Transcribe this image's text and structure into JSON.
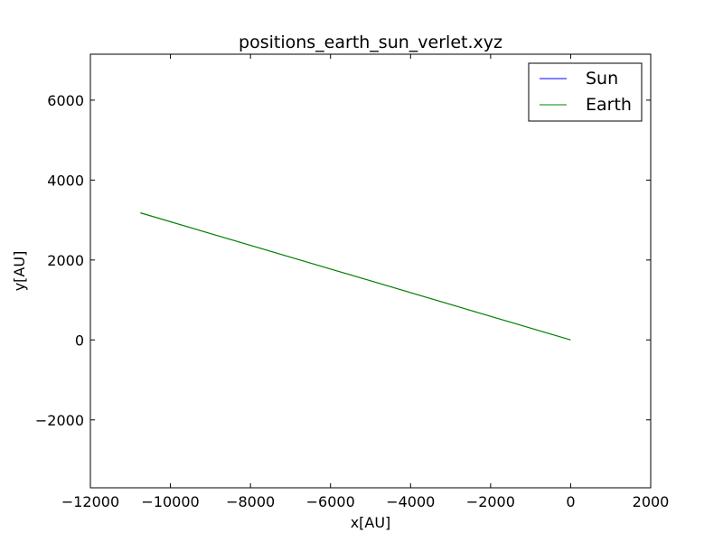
{
  "chart_data": {
    "type": "line",
    "title": "positions_earth_sun_verlet.xyz",
    "xlabel": "x[AU]",
    "ylabel": "y[AU]",
    "xlim": [
      -12000,
      2000
    ],
    "ylim": [
      -3700,
      7150
    ],
    "xticks": [
      -12000,
      -10000,
      -8000,
      -6000,
      -4000,
      -2000,
      0,
      2000
    ],
    "yticks": [
      -2000,
      0,
      2000,
      4000,
      6000
    ],
    "xtick_labels": [
      "−12000",
      "−10000",
      "−8000",
      "−6000",
      "−4000",
      "−2000",
      "0",
      "2000"
    ],
    "ytick_labels": [
      "−2000",
      "0",
      "2000",
      "4000",
      "6000"
    ],
    "grid": false,
    "legend_position": "top-right",
    "series": [
      {
        "name": "Sun",
        "color": "#0000ff",
        "x": [
          0,
          0
        ],
        "y": [
          0,
          0
        ]
      },
      {
        "name": "Earth",
        "color": "#008000",
        "x": [
          -10750,
          0
        ],
        "y": [
          3180,
          0
        ]
      }
    ]
  }
}
